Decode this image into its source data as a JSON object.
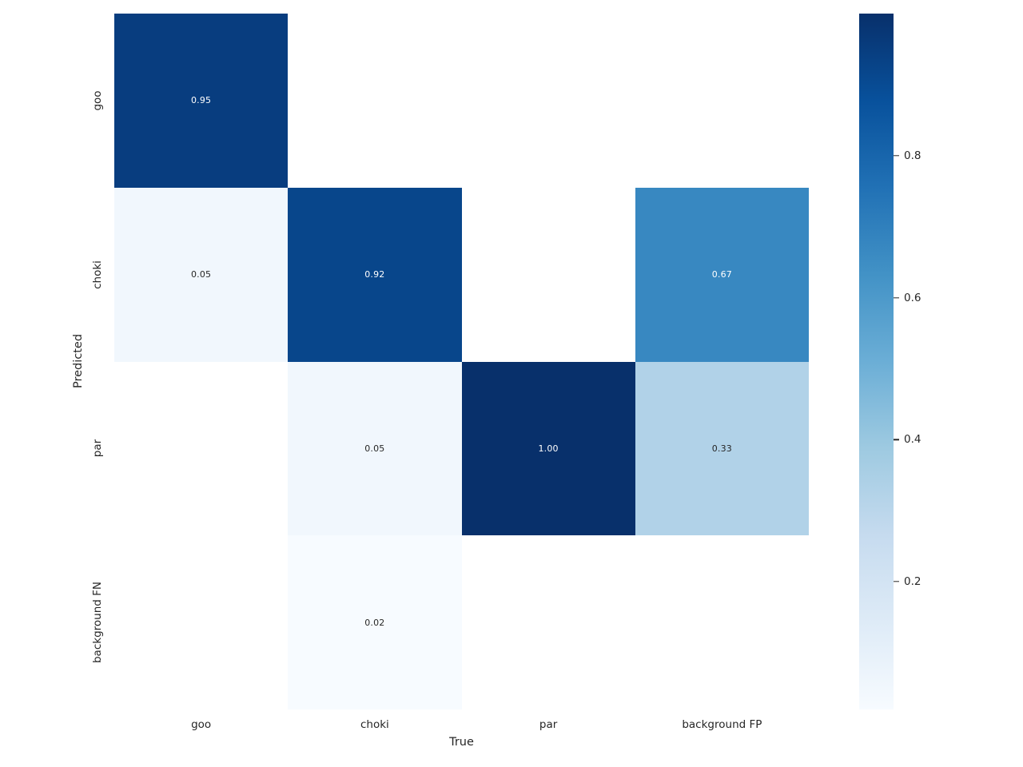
{
  "figure": {
    "background_color": "#ffffff",
    "text_color": "#262626"
  },
  "chart_data": {
    "type": "heatmap",
    "title": "",
    "xlabel": "True",
    "ylabel": "Predicted",
    "columns": [
      "goo",
      "choki",
      "par",
      "background FP"
    ],
    "rows": [
      "goo",
      "choki",
      "par",
      "background FN"
    ],
    "values": [
      [
        0.95,
        null,
        null,
        null
      ],
      [
        0.05,
        0.92,
        null,
        0.67
      ],
      [
        null,
        0.05,
        1.0,
        0.33
      ],
      [
        null,
        0.02,
        null,
        null
      ]
    ],
    "value_format_decimals": 2,
    "empty_cell_color": "#ffffff",
    "annot_color_dark": "#262626",
    "annot_color_light": "#ffffff",
    "colormap": "Blues",
    "colormap_stops": [
      "#f7fbff",
      "#deebf7",
      "#c6dbef",
      "#9ecae1",
      "#6baed6",
      "#4292c6",
      "#2171b5",
      "#08519c",
      "#08306b"
    ],
    "vmin": 0.02,
    "vmax": 1.0,
    "colorbar": {
      "position": "right",
      "ticks": [
        0.2,
        0.4,
        0.6,
        0.8
      ],
      "tick_labels": [
        "0.2",
        "0.4",
        "0.6",
        "0.8"
      ]
    },
    "grid": false,
    "legend_position": "right colorbar"
  }
}
